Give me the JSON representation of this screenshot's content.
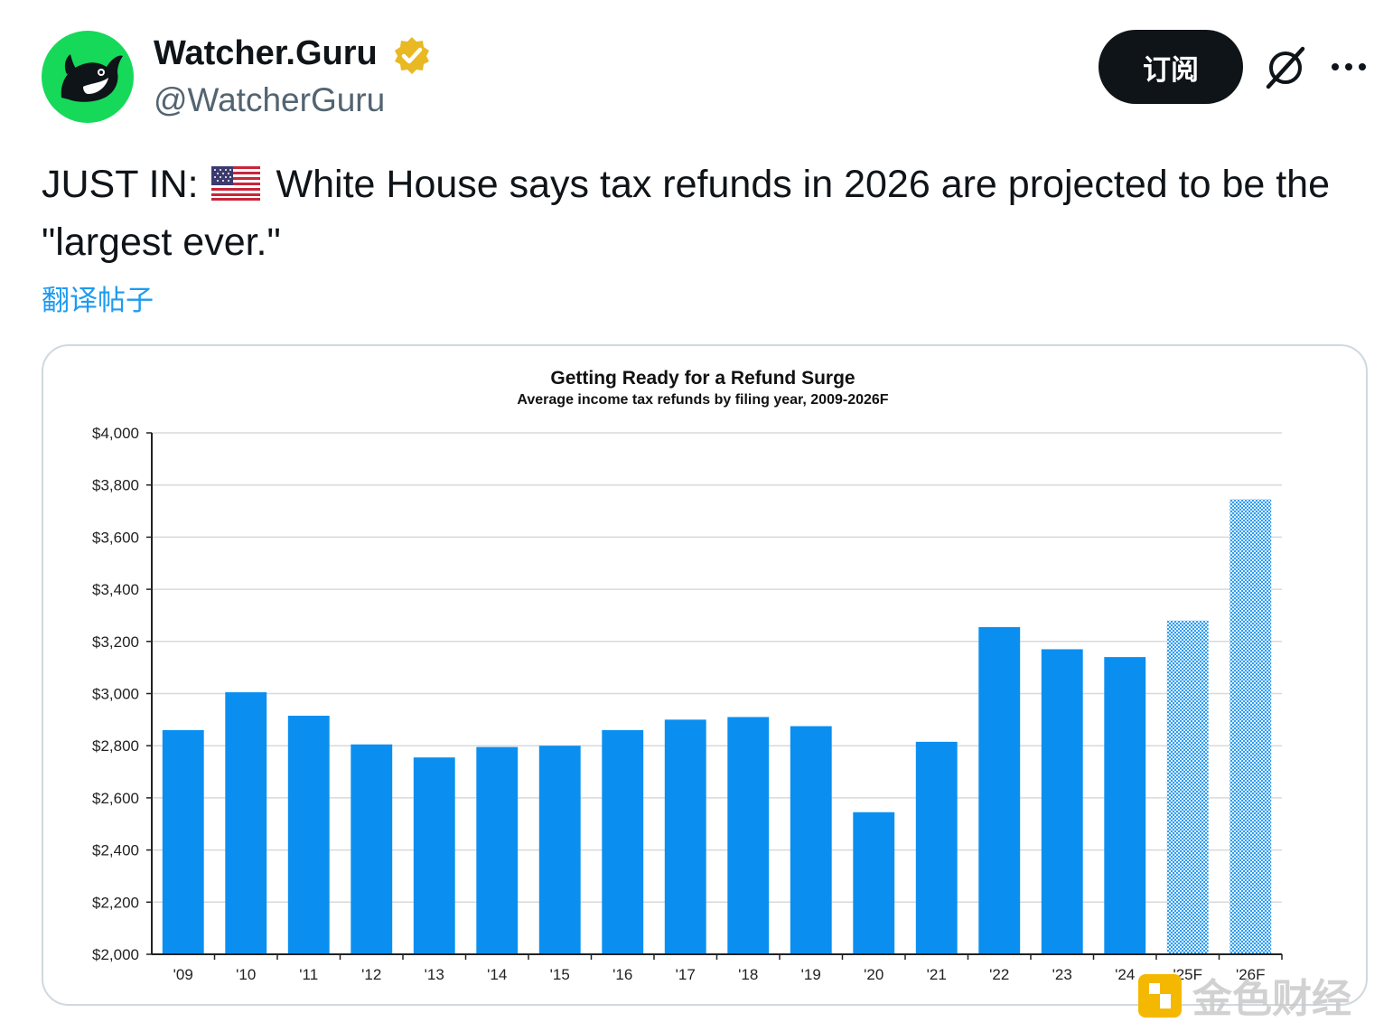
{
  "author": {
    "display_name": "Watcher.Guru",
    "handle": "@WatcherGuru"
  },
  "actions": {
    "subscribe_label": "订阅"
  },
  "tweet": {
    "text_prefix": "JUST IN:",
    "text_body": "White House says tax refunds in 2026 are projected to be the \"largest ever.\"",
    "translate_label": "翻译帖子"
  },
  "watermark": {
    "text": "金色财经"
  },
  "colors": {
    "accent": "#1d9bf0",
    "bar_actual": "#0a8ff0",
    "bar_forecast_a": "#2e9df0",
    "bar_forecast_b": "#e3f1fd",
    "avatar_bg": "#16d95a",
    "verified_badge": "#e8b923"
  },
  "chart_data": {
    "type": "bar",
    "title": "Getting Ready for a Refund Surge",
    "subtitle": "Average income tax refunds by filing year, 2009-2026F",
    "categories": [
      "'09",
      "'10",
      "'11",
      "'12",
      "'13",
      "'14",
      "'15",
      "'16",
      "'17",
      "'18",
      "'19",
      "'20",
      "'21",
      "'22",
      "'23",
      "'24",
      "'25F",
      "'26F"
    ],
    "values": [
      2860,
      3005,
      2915,
      2805,
      2755,
      2795,
      2800,
      2860,
      2900,
      2910,
      2875,
      2545,
      2815,
      3255,
      3170,
      3140,
      3280,
      3745
    ],
    "forecast": [
      false,
      false,
      false,
      false,
      false,
      false,
      false,
      false,
      false,
      false,
      false,
      false,
      false,
      false,
      false,
      false,
      true,
      true
    ],
    "ylim": [
      2000,
      4000
    ],
    "yticks": [
      2000,
      2200,
      2400,
      2600,
      2800,
      3000,
      3200,
      3400,
      3600,
      3800,
      4000
    ],
    "ytick_labels": [
      "$2,000",
      "$2,200",
      "$2,400",
      "$2,600",
      "$2,800",
      "$3,000",
      "$3,200",
      "$3,400",
      "$3,600",
      "$3,800",
      "$4,000"
    ],
    "grid": true
  }
}
